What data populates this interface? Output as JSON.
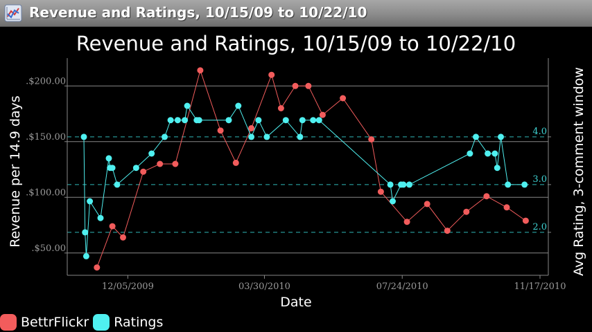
{
  "window": {
    "title": "Revenue and Ratings, 10/15/09 to 10/22/10",
    "icon": "chart-app-icon"
  },
  "colors": {
    "bettrflickr": "#f25c5c",
    "ratings": "#4ff0f0",
    "grid": "#888888",
    "dashed": "#2fb8b8"
  },
  "chart_data": {
    "type": "line",
    "title": "Revenue and Ratings, 10/15/09 to 10/22/10",
    "xlabel": "Date",
    "ylabel_left": "Revenue per 14.9 days",
    "ylabel_right": "Avg Rating, 3-comment window",
    "x_ticks": [
      "12/05/2009",
      "03/30/2010",
      "07/24/2010",
      "11/17/2010"
    ],
    "y_left_ticks": [
      ".$50.00",
      ".$100.00",
      ".$150.00",
      ".$200.00"
    ],
    "y_left_tick_values": [
      50,
      100,
      150,
      200
    ],
    "y_right_ticks": [
      "2.0",
      "3.0",
      "4.0"
    ],
    "y_right_tick_values": [
      2.0,
      3.0,
      4.0
    ],
    "ylim_left": [
      30,
      225
    ],
    "ylim_right": [
      1.1,
      5.65
    ],
    "xlim": [
      "2009-10-15",
      "2010-11-24"
    ],
    "grid": "horizontal",
    "legend_position": "bottom-left",
    "series": [
      {
        "name": "BettrFlickr",
        "axis": "left",
        "x": [
          "2009-11-09",
          "2009-11-22",
          "2009-12-01",
          "2009-12-18",
          "2010-01-01",
          "2010-01-14",
          "2010-02-04",
          "2010-02-21",
          "2010-03-06",
          "2010-03-19",
          "2010-04-05",
          "2010-04-13",
          "2010-04-25",
          "2010-05-06",
          "2010-05-18",
          "2010-06-04",
          "2010-06-28",
          "2010-07-06",
          "2010-07-28",
          "2010-08-14",
          "2010-08-31",
          "2010-09-16",
          "2010-10-03",
          "2010-10-20",
          "2010-11-05"
        ],
        "values": [
          37,
          74,
          64,
          123,
          130,
          130,
          214,
          160,
          131,
          162,
          210,
          180,
          200,
          200,
          174,
          189,
          152,
          105,
          78,
          94,
          70,
          87,
          101,
          91,
          79
        ]
      },
      {
        "name": "Ratings",
        "axis": "right",
        "x": [
          "2009-10-29",
          "2009-10-30",
          "2009-10-31",
          "2009-11-03",
          "2009-11-12",
          "2009-11-19",
          "2009-11-20",
          "2009-11-22",
          "2009-11-26",
          "2009-12-12",
          "2009-12-25",
          "2010-01-05",
          "2010-01-10",
          "2010-01-16",
          "2010-01-22",
          "2010-01-24",
          "2010-02-01",
          "2010-02-03",
          "2010-02-28",
          "2010-03-08",
          "2010-03-19",
          "2010-03-25",
          "2010-04-01",
          "2010-04-17",
          "2010-04-29",
          "2010-05-01",
          "2010-05-10",
          "2010-05-15",
          "2010-07-14",
          "2010-07-16",
          "2010-07-23",
          "2010-07-25",
          "2010-07-30",
          "2010-09-19",
          "2010-09-24",
          "2010-10-04",
          "2010-10-10",
          "2010-10-12",
          "2010-10-15",
          "2010-10-21",
          "2010-11-04"
        ],
        "values": [
          4.0,
          2.0,
          1.5,
          2.65,
          2.3,
          3.55,
          3.35,
          3.35,
          3.0,
          3.35,
          3.65,
          4.0,
          4.35,
          4.35,
          4.35,
          4.65,
          4.35,
          4.35,
          4.35,
          4.65,
          4.0,
          4.35,
          4.0,
          4.35,
          4.0,
          4.35,
          4.35,
          4.35,
          3.0,
          2.65,
          3.0,
          3.0,
          3.0,
          3.65,
          4.0,
          3.65,
          3.65,
          3.35,
          4.0,
          3.0,
          3.0
        ]
      }
    ]
  }
}
